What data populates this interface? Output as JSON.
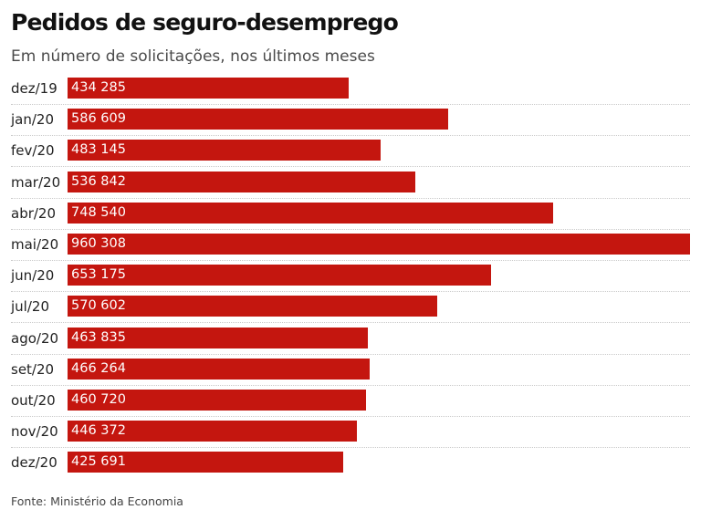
{
  "header": {
    "title": "Pedidos de seguro-desemprego",
    "subtitle": "Em número de solicitações, nos últimos meses"
  },
  "footer": {
    "source": "Fonte: Ministério da Economia"
  },
  "colors": {
    "bar": "#c4160f",
    "value_text": "#ffffff"
  },
  "chart_data": {
    "type": "bar",
    "orientation": "horizontal",
    "title": "Pedidos de seguro-desemprego",
    "subtitle": "Em número de solicitações, nos últimos meses",
    "xlabel": "",
    "ylabel": "",
    "xlim": [
      0,
      960308
    ],
    "grid": false,
    "categories": [
      "dez/19",
      "jan/20",
      "fev/20",
      "mar/20",
      "abr/20",
      "mai/20",
      "jun/20",
      "jul/20",
      "ago/20",
      "set/20",
      "out/20",
      "nov/20",
      "dez/20"
    ],
    "values": [
      434285,
      586609,
      483145,
      536842,
      748540,
      960308,
      653175,
      570602,
      463835,
      466264,
      460720,
      446372,
      425691
    ],
    "value_labels": [
      "434 285",
      "586 609",
      "483 145",
      "536 842",
      "748 540",
      "960 308",
      "653 175",
      "570 602",
      "463 835",
      "466 264",
      "460 720",
      "446 372",
      "425 691"
    ],
    "source": "Fonte: Ministério da Economia"
  }
}
